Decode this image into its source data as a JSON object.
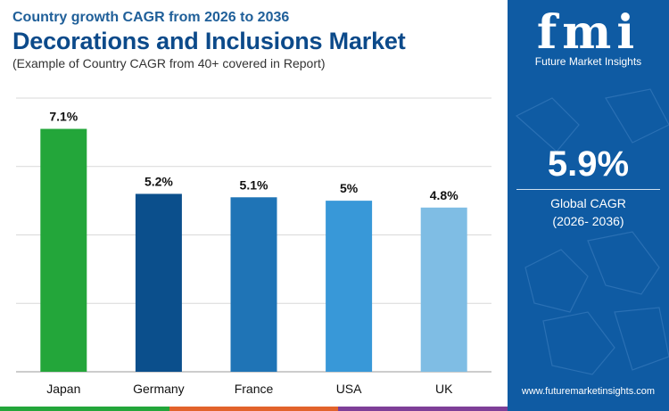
{
  "header": {
    "subtitle": "Country growth CAGR from 2026 to 2036",
    "title": "Decorations and Inclusions Market",
    "note": "(Example of Country CAGR from 40+ covered in Report)"
  },
  "chart_data": {
    "type": "bar",
    "categories": [
      "Japan",
      "Germany",
      "France",
      "USA",
      "UK"
    ],
    "values": [
      7.1,
      5.2,
      5.1,
      5.0,
      4.8
    ],
    "value_labels": [
      "7.1%",
      "5.2%",
      "5.1%",
      "5%",
      "4.8%"
    ],
    "colors": [
      "#23a63a",
      "#0b4f8c",
      "#1f74b6",
      "#3898d8",
      "#7fbde4"
    ],
    "ylim": [
      0,
      8
    ],
    "grid": true,
    "legend": "none"
  },
  "sidebar": {
    "logo_text": "fmi",
    "logo_tagline": "Future Market Insights",
    "global_value": "5.9%",
    "global_label": "Global CAGR",
    "global_period": "(2026- 2036)",
    "website": "www.futuremarketinsights.com"
  },
  "colors": {
    "panel_bg": "#0f5ba3",
    "title": "#0c4a8a",
    "stripe": [
      "#23a63a",
      "#e2632b",
      "#7e3f98"
    ]
  }
}
